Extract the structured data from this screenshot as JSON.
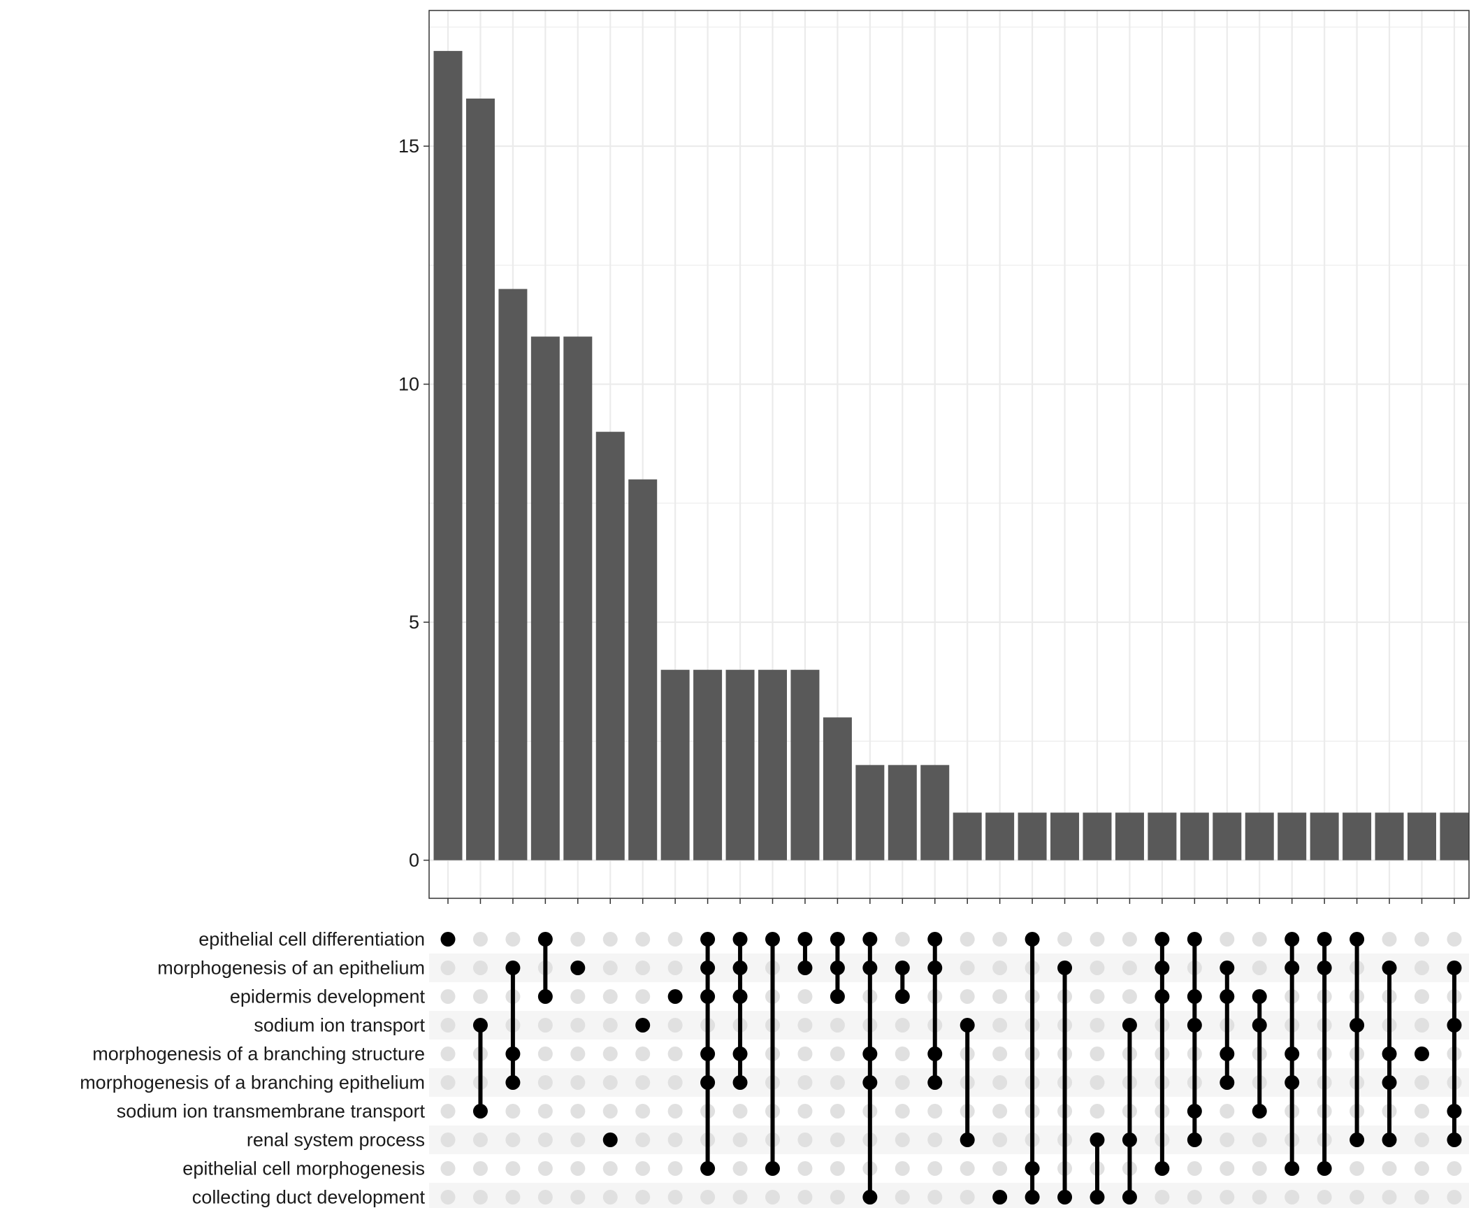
{
  "chart_data": {
    "type": "bar",
    "title": "",
    "xlabel": "",
    "ylabel": "",
    "ylim": [
      -0.8,
      17.85
    ],
    "y_ticks": [
      "0",
      "5",
      "10",
      "15"
    ],
    "grid": true,
    "colors": {
      "bar": "#595959",
      "dot_active": "#000000",
      "dot_inactive": "#e0e0e0",
      "stripe": "#f5f5f5",
      "grid": "#ebebeb",
      "panel_border": "#333333"
    },
    "sets": [
      "epithelial cell differentiation",
      "morphogenesis of an epithelium",
      "epidermis development",
      "sodium ion transport",
      "morphogenesis of a branching structure",
      "morphogenesis of a branching epithelium",
      "sodium ion transmembrane transport",
      "renal system process",
      "epithelial cell morphogenesis",
      "collecting duct development"
    ],
    "values": [
      17,
      16,
      12,
      11,
      11,
      9,
      8,
      4,
      4,
      4,
      4,
      4,
      3,
      2,
      2,
      2,
      1,
      1,
      1,
      1,
      1,
      1,
      1,
      1,
      1,
      1,
      1,
      1,
      1,
      1,
      1,
      1
    ],
    "intersections": [
      [
        0
      ],
      [
        3,
        6
      ],
      [
        1,
        4,
        5
      ],
      [
        0,
        2
      ],
      [
        1
      ],
      [
        7
      ],
      [
        3
      ],
      [
        2
      ],
      [
        0,
        1,
        2,
        4,
        5,
        8
      ],
      [
        0,
        1,
        2,
        4,
        5
      ],
      [
        0,
        8
      ],
      [
        0,
        1
      ],
      [
        0,
        1,
        2
      ],
      [
        0,
        1,
        4,
        5,
        9
      ],
      [
        1,
        2
      ],
      [
        0,
        1,
        4,
        5
      ],
      [
        3,
        7
      ],
      [
        9
      ],
      [
        0,
        8,
        9
      ],
      [
        1,
        9
      ],
      [
        7,
        9
      ],
      [
        3,
        7,
        9
      ],
      [
        0,
        1,
        2,
        8
      ],
      [
        0,
        2,
        3,
        6,
        7
      ],
      [
        1,
        2,
        4,
        5
      ],
      [
        2,
        3,
        6
      ],
      [
        0,
        1,
        4,
        5,
        8
      ],
      [
        0,
        1,
        8
      ],
      [
        0,
        3,
        7
      ],
      [
        1,
        4,
        5,
        7
      ],
      [
        4
      ],
      [
        1,
        3,
        6,
        7
      ]
    ]
  }
}
